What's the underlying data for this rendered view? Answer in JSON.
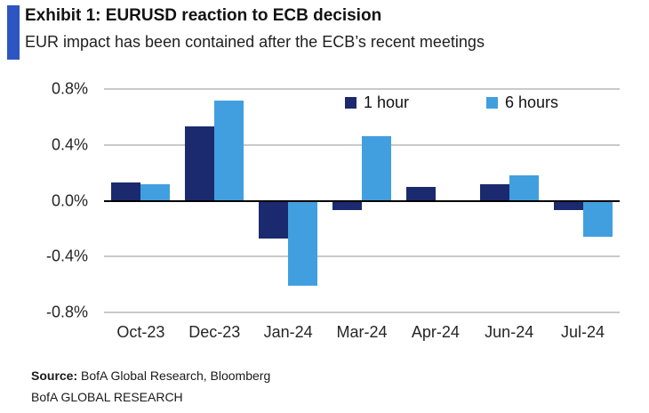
{
  "header": {
    "title": "Exhibit 1: EURUSD reaction to ECB decision",
    "subtitle": "EUR impact has been contained after the ECB’s recent meetings",
    "accent_color": "#2D55C3"
  },
  "chart_data": {
    "type": "bar",
    "title": "EURUSD reaction to ECB decision",
    "categories": [
      "Oct-23",
      "Dec-23",
      "Jan-24",
      "Mar-24",
      "Apr-24",
      "Jun-24",
      "Jul-24"
    ],
    "series": [
      {
        "name": "1 hour",
        "color": "#1B2A6E",
        "values": [
          0.13,
          0.53,
          -0.27,
          -0.07,
          0.1,
          0.12,
          -0.07
        ]
      },
      {
        "name": "6 hours",
        "color": "#419FE0",
        "values": [
          0.12,
          0.72,
          -0.61,
          0.46,
          -0.01,
          0.18,
          -0.26
        ]
      }
    ],
    "xlabel": "",
    "ylabel": "",
    "ylim": [
      -0.8,
      0.8
    ],
    "yticks": [
      {
        "value": 0.8,
        "label": "0.8%"
      },
      {
        "value": 0.4,
        "label": "0.4%"
      },
      {
        "value": 0.0,
        "label": "0.0%"
      },
      {
        "value": -0.4,
        "label": "-0.4%"
      },
      {
        "value": -0.8,
        "label": "-0.8%"
      }
    ],
    "grid": true,
    "gridline_color": "#C9C9C9",
    "zero_line_color": "#000000",
    "legend_position": "top-inside"
  },
  "footer": {
    "source_label": "Source:",
    "source_text": " BofA Global Research, Bloomberg",
    "brand_line": "BofA GLOBAL RESEARCH"
  }
}
